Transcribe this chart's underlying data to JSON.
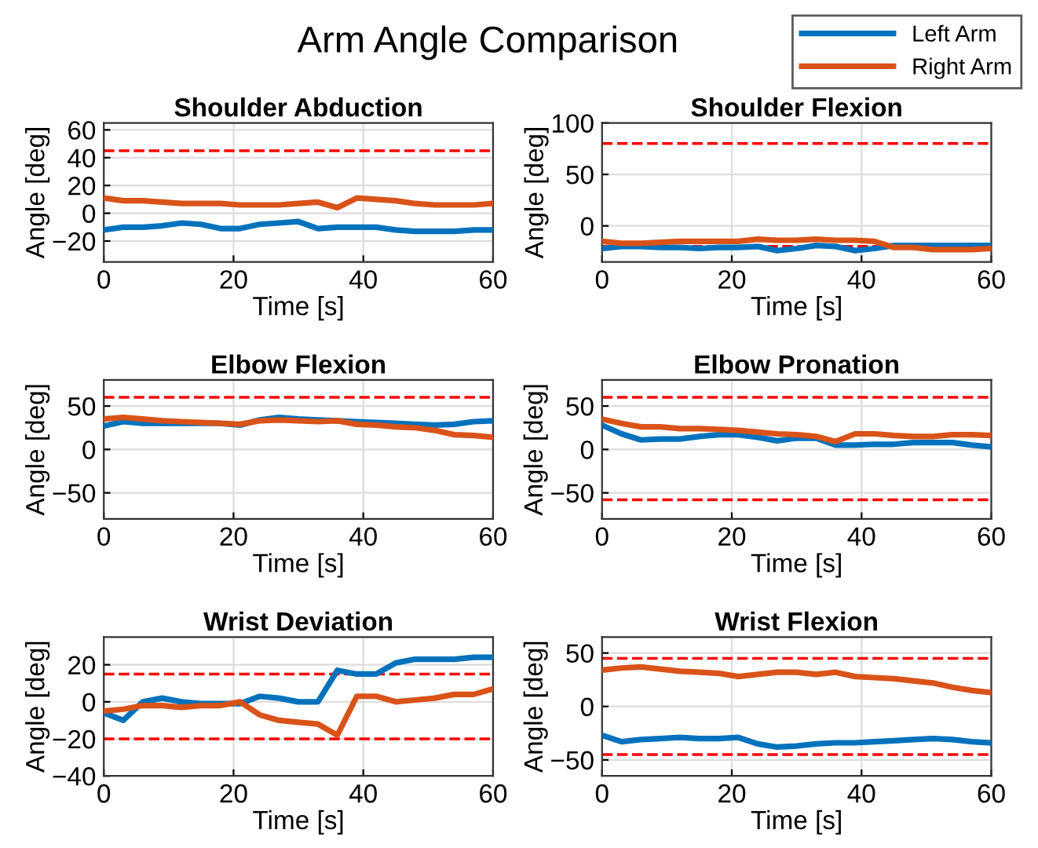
{
  "chart_data": [
    {
      "type": "line",
      "title": "Shoulder Abduction",
      "xlabel": "Time [s]",
      "ylabel": "Angle [deg]",
      "annotations": [
        "Arm Angle Comparison"
      ],
      "legend": "top right",
      "grid": true,
      "line_style": "solid",
      "marker": "none",
      "x": [
        0,
        3,
        6,
        9,
        12,
        15,
        18,
        21,
        24,
        27,
        30,
        33,
        36,
        39,
        42,
        45,
        48,
        51,
        54,
        57,
        60
      ],
      "xlim": [
        0,
        60
      ],
      "xticks": [
        0,
        20,
        40,
        60
      ],
      "ylim": [
        -35,
        65
      ],
      "yticks": [
        -20,
        0,
        20,
        40,
        60
      ],
      "ref_lines": [
        {
          "axis": "y",
          "value": 45,
          "color": "#ff0000",
          "line_style": "dashed"
        }
      ],
      "series": [
        {
          "name": "Left Arm",
          "color": "#0072bd",
          "values": [
            -12,
            -10,
            -10,
            -9,
            -7,
            -8,
            -11,
            -11,
            -8,
            -7,
            -6,
            -11,
            -10,
            -10,
            -10,
            -12,
            -13,
            -13,
            -13,
            -12,
            -12
          ]
        },
        {
          "name": "Right Arm",
          "color": "#d95319",
          "values": [
            11,
            9,
            9,
            8,
            7,
            7,
            7,
            6,
            6,
            6,
            7,
            8,
            4,
            11,
            10,
            9,
            7,
            6,
            6,
            6,
            7
          ]
        }
      ]
    },
    {
      "type": "line",
      "title": "Shoulder Flexion",
      "xlabel": "Time [s]",
      "ylabel": "Angle [deg]",
      "grid": true,
      "line_style": "solid",
      "marker": "none",
      "x": [
        0,
        3,
        6,
        9,
        12,
        15,
        18,
        21,
        24,
        27,
        30,
        33,
        36,
        39,
        42,
        45,
        48,
        51,
        54,
        57,
        60
      ],
      "xlim": [
        0,
        60
      ],
      "xticks": [
        0,
        20,
        40,
        60
      ],
      "ylim": [
        -35,
        100
      ],
      "yticks": [
        0,
        50,
        100
      ],
      "ref_lines": [
        {
          "axis": "y",
          "value": 80,
          "color": "#ff0000",
          "line_style": "dashed"
        },
        {
          "axis": "y",
          "value": -20,
          "color": "#ff0000",
          "line_style": "dashed"
        }
      ],
      "series": [
        {
          "color": "#0072bd",
          "values": [
            -22,
            -20,
            -20,
            -21,
            -21,
            -22,
            -21,
            -21,
            -20,
            -24,
            -22,
            -19,
            -20,
            -24,
            -22,
            -19,
            -19,
            -19,
            -19,
            -19,
            -19
          ]
        },
        {
          "color": "#d95319",
          "values": [
            -15,
            -17,
            -17,
            -16,
            -15,
            -15,
            -15,
            -15,
            -13,
            -14,
            -14,
            -13,
            -14,
            -14,
            -15,
            -21,
            -21,
            -23,
            -23,
            -23,
            -22
          ]
        }
      ]
    },
    {
      "type": "line",
      "title": "Elbow Flexion",
      "xlabel": "Time [s]",
      "ylabel": "Angle [deg]",
      "grid": true,
      "line_style": "solid",
      "marker": "none",
      "x": [
        0,
        3,
        6,
        9,
        12,
        15,
        18,
        21,
        24,
        27,
        30,
        33,
        36,
        39,
        42,
        45,
        48,
        51,
        54,
        57,
        60
      ],
      "xlim": [
        0,
        60
      ],
      "xticks": [
        0,
        20,
        40,
        60
      ],
      "ylim": [
        -80,
        80
      ],
      "yticks": [
        -50,
        0,
        50
      ],
      "ref_lines": [
        {
          "axis": "y",
          "value": 60,
          "color": "#ff0000",
          "line_style": "dashed"
        }
      ],
      "series": [
        {
          "color": "#0072bd",
          "values": [
            27,
            32,
            30,
            30,
            30,
            30,
            30,
            28,
            34,
            37,
            35,
            34,
            33,
            32,
            31,
            30,
            29,
            28,
            29,
            32,
            33
          ]
        },
        {
          "color": "#d95319",
          "values": [
            35,
            37,
            35,
            33,
            32,
            31,
            30,
            29,
            33,
            34,
            33,
            32,
            33,
            29,
            28,
            26,
            25,
            22,
            17,
            16,
            14
          ]
        }
      ]
    },
    {
      "type": "line",
      "title": "Elbow Pronation",
      "xlabel": "Time [s]",
      "ylabel": "Angle [deg]",
      "grid": true,
      "line_style": "solid",
      "marker": "none",
      "x": [
        0,
        3,
        6,
        9,
        12,
        15,
        18,
        21,
        24,
        27,
        30,
        33,
        36,
        39,
        42,
        45,
        48,
        51,
        54,
        57,
        60
      ],
      "xlim": [
        0,
        60
      ],
      "xticks": [
        0,
        20,
        40,
        60
      ],
      "ylim": [
        -80,
        80
      ],
      "yticks": [
        -50,
        0,
        50
      ],
      "ref_lines": [
        {
          "axis": "y",
          "value": 60,
          "color": "#ff0000",
          "line_style": "dashed"
        },
        {
          "axis": "y",
          "value": -58,
          "color": "#ff0000",
          "line_style": "dashed"
        }
      ],
      "series": [
        {
          "color": "#0072bd",
          "values": [
            28,
            18,
            11,
            12,
            12,
            15,
            17,
            17,
            14,
            10,
            13,
            13,
            5,
            5,
            6,
            6,
            8,
            8,
            8,
            5,
            3
          ]
        },
        {
          "color": "#d95319",
          "values": [
            35,
            30,
            26,
            26,
            24,
            24,
            23,
            22,
            20,
            18,
            17,
            15,
            9,
            18,
            18,
            16,
            15,
            15,
            17,
            17,
            16
          ]
        }
      ]
    },
    {
      "type": "line",
      "title": "Wrist Deviation",
      "xlabel": "Time [s]",
      "ylabel": "Angle [deg]",
      "grid": true,
      "line_style": "solid",
      "marker": "none",
      "x": [
        0,
        3,
        6,
        9,
        12,
        15,
        18,
        21,
        24,
        27,
        30,
        33,
        36,
        39,
        42,
        45,
        48,
        51,
        54,
        57,
        60
      ],
      "xlim": [
        0,
        60
      ],
      "xticks": [
        0,
        20,
        40,
        60
      ],
      "ylim": [
        -40,
        35
      ],
      "yticks": [
        -40,
        -20,
        0,
        20
      ],
      "ref_lines": [
        {
          "axis": "y",
          "value": 15,
          "color": "#ff0000",
          "line_style": "dashed"
        },
        {
          "axis": "y",
          "value": -20,
          "color": "#ff0000",
          "line_style": "dashed"
        }
      ],
      "series": [
        {
          "color": "#0072bd",
          "values": [
            -6,
            -10,
            0,
            2,
            0,
            -1,
            -1,
            -1,
            3,
            2,
            0,
            0,
            17,
            15,
            15,
            21,
            23,
            23,
            23,
            24,
            24
          ]
        },
        {
          "color": "#d95319",
          "values": [
            -5,
            -4,
            -2,
            -2,
            -3,
            -2,
            -2,
            0,
            -7,
            -10,
            -11,
            -12,
            -18,
            3,
            3,
            0,
            1,
            2,
            4,
            4,
            7
          ]
        }
      ]
    },
    {
      "type": "line",
      "title": "Wrist Flexion",
      "xlabel": "Time [s]",
      "ylabel": "Angle [deg]",
      "grid": true,
      "line_style": "solid",
      "marker": "none",
      "x": [
        0,
        3,
        6,
        9,
        12,
        15,
        18,
        21,
        24,
        27,
        30,
        33,
        36,
        39,
        42,
        45,
        48,
        51,
        54,
        57,
        60
      ],
      "xlim": [
        0,
        60
      ],
      "xticks": [
        0,
        20,
        40,
        60
      ],
      "ylim": [
        -65,
        65
      ],
      "yticks": [
        -50,
        0,
        50
      ],
      "ref_lines": [
        {
          "axis": "y",
          "value": 45,
          "color": "#ff0000",
          "line_style": "dashed"
        },
        {
          "axis": "y",
          "value": -45,
          "color": "#ff0000",
          "line_style": "dashed"
        }
      ],
      "series": [
        {
          "color": "#0072bd",
          "values": [
            -27,
            -33,
            -31,
            -30,
            -29,
            -30,
            -30,
            -29,
            -35,
            -38,
            -37,
            -35,
            -34,
            -34,
            -33,
            -32,
            -31,
            -30,
            -31,
            -33,
            -34
          ]
        },
        {
          "color": "#d95319",
          "values": [
            34,
            36,
            37,
            35,
            33,
            32,
            31,
            28,
            30,
            32,
            32,
            30,
            32,
            28,
            27,
            26,
            24,
            22,
            18,
            15,
            13
          ]
        }
      ]
    }
  ]
}
